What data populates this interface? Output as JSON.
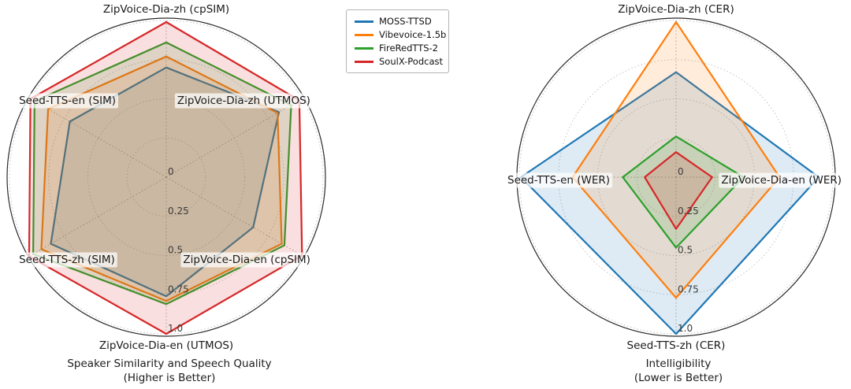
{
  "figure": {
    "background": "#ffffff"
  },
  "legend": {
    "position": "top-center",
    "items": [
      {
        "label": "MOSS-TTSD",
        "color": "#1f77b4"
      },
      {
        "label": "Vibevoice-1.5b",
        "color": "#ff7f0e"
      },
      {
        "label": "FireRedTTS-2",
        "color": "#2ca02c"
      },
      {
        "label": "SoulX-Podcast",
        "color": "#d62728"
      }
    ]
  },
  "chart_data": [
    {
      "type": "radar",
      "title": "Speaker Similarity and Speech Quality",
      "subtitle": "(Higher is Better)",
      "axes": [
        "ZipVoice-Dia-zh (cpSIM)",
        "ZipVoice-Dia-zh (UTMOS)",
        "ZipVoice-Dia-en (cpSIM)",
        "ZipVoice-Dia-en (UTMOS)",
        "Seed-TTS-zh (SIM)",
        "Seed-TTS-en (SIM)"
      ],
      "r_tick_labels": [
        "0",
        "0.25",
        "0.5",
        "0.75",
        "1.0"
      ],
      "r_tick_values": [
        0,
        0.25,
        0.5,
        0.75,
        1.0
      ],
      "r_max": 1.015,
      "grid": "dashed",
      "fill_opacity": 0.15,
      "line_width": 2.2,
      "series": [
        {
          "name": "MOSS-TTSD",
          "color": "#1f77b4",
          "values": [
            0.7,
            0.83,
            0.64,
            0.76,
            0.85,
            0.71
          ]
        },
        {
          "name": "Vibevoice-1.5b",
          "color": "#ff7f0e",
          "values": [
            0.77,
            0.82,
            0.85,
            0.79,
            0.92,
            0.87
          ]
        },
        {
          "name": "FireRedTTS-2",
          "color": "#2ca02c",
          "values": [
            0.86,
            0.92,
            0.87,
            0.81,
            0.98,
            0.97
          ]
        },
        {
          "name": "SoulX-Podcast",
          "color": "#d62728",
          "values": [
            0.99,
            0.98,
            1.0,
            1.0,
            1.01,
            1.0
          ]
        }
      ]
    },
    {
      "type": "radar",
      "title": "Intelligibility",
      "subtitle": "(Lower is Better)",
      "axes": [
        "ZipVoice-Dia-zh (CER)",
        "ZipVoice-Dia-en (WER)",
        "Seed-TTS-zh (CER)",
        "Seed-TTS-en (WER)"
      ],
      "r_tick_labels": [
        "0",
        "0.25",
        "0.5",
        "0.75",
        "1.0"
      ],
      "r_tick_values": [
        0,
        0.25,
        0.5,
        0.75,
        1.0
      ],
      "r_max": 1.015,
      "grid": "dashed",
      "fill_opacity": 0.15,
      "line_width": 2.2,
      "series": [
        {
          "name": "MOSS-TTSD",
          "color": "#1f77b4",
          "values": [
            0.67,
            0.91,
            1.0,
            0.99
          ]
        },
        {
          "name": "Vibevoice-1.5b",
          "color": "#ff7f0e",
          "values": [
            0.99,
            0.66,
            0.77,
            0.66
          ]
        },
        {
          "name": "FireRedTTS-2",
          "color": "#2ca02c",
          "values": [
            0.26,
            0.43,
            0.45,
            0.34
          ]
        },
        {
          "name": "SoulX-Podcast",
          "color": "#d62728",
          "values": [
            0.16,
            0.23,
            0.33,
            0.2
          ]
        }
      ]
    }
  ]
}
